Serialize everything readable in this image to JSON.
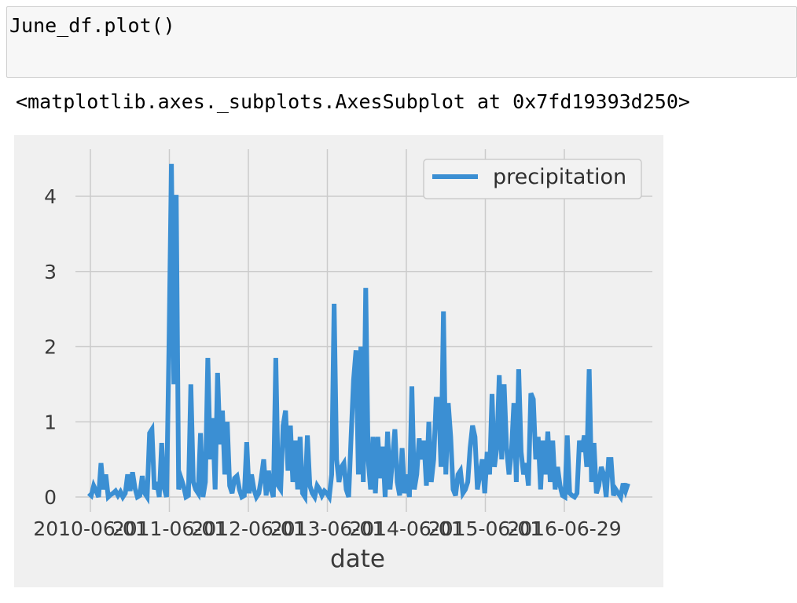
{
  "cell": {
    "code": "June_df.plot()",
    "output": "<matplotlib.axes._subplots.AxesSubplot at 0x7fd19393d250>"
  },
  "colors": {
    "figure_bg": "#f0f0f0",
    "plot_bg": "#f0f0f0",
    "grid": "#cbcbcb",
    "line": "#3b8fd3"
  },
  "chart_data": {
    "type": "line",
    "title": "",
    "xlabel": "date",
    "ylabel": "",
    "ylim": [
      0,
      4.5
    ],
    "yticks": [
      0,
      1,
      2,
      3,
      4
    ],
    "xticks": [
      "2010-06-01",
      "2011-06-01",
      "2012-06-01",
      "2013-06-01",
      "2014-06-01",
      "2015-06-01",
      "2016-06-29"
    ],
    "grid": true,
    "legend": {
      "position": "top-right"
    },
    "series": [
      {
        "name": "precipitation",
        "values": [
          0.05,
          0.02,
          0.15,
          0.08,
          0.0,
          0.45,
          0.1,
          0.3,
          0.0,
          0.03,
          0.05,
          0.08,
          0.02,
          0.07,
          0.0,
          0.05,
          0.3,
          0.08,
          0.33,
          0.12,
          0.0,
          0.02,
          0.28,
          0.05,
          0.0,
          0.85,
          0.9,
          0.1,
          0.2,
          0.0,
          0.72,
          0.12,
          0.0,
          2.0,
          4.43,
          1.5,
          4.02,
          0.1,
          0.25,
          0.15,
          0.0,
          0.02,
          1.5,
          0.2,
          0.1,
          0.05,
          0.85,
          0.0,
          0.2,
          1.85,
          0.5,
          1.05,
          0.1,
          1.65,
          0.7,
          1.15,
          0.3,
          1.0,
          0.15,
          0.05,
          0.25,
          0.28,
          0.1,
          0.0,
          0.02,
          0.73,
          0.05,
          0.3,
          0.1,
          0.0,
          0.05,
          0.25,
          0.5,
          0.02,
          0.35,
          0.1,
          0.0,
          1.85,
          0.15,
          0.1,
          0.95,
          1.15,
          0.35,
          0.95,
          0.2,
          0.75,
          0.1,
          0.8,
          0.05,
          0.0,
          0.82,
          0.15,
          0.05,
          0.0,
          0.15,
          0.1,
          0.02,
          0.08,
          0.05,
          0.0,
          0.3,
          2.57,
          0.5,
          0.2,
          0.4,
          0.45,
          0.1,
          0.0,
          0.8,
          1.55,
          1.95,
          0.3,
          2.0,
          0.2,
          2.78,
          0.5,
          0.1,
          0.8,
          0.05,
          0.8,
          0.25,
          0.67,
          0.0,
          0.87,
          0.1,
          0.5,
          0.9,
          0.2,
          0.02,
          0.65,
          0.05,
          0.3,
          0.0,
          1.47,
          0.1,
          0.3,
          0.78,
          0.5,
          0.75,
          0.15,
          1.0,
          0.2,
          0.5,
          1.3,
          1.3,
          0.4,
          2.47,
          0.3,
          1.25,
          0.8,
          0.1,
          0.02,
          0.3,
          0.35,
          0.05,
          0.1,
          0.2,
          0.65,
          0.95,
          0.8,
          0.1,
          0.3,
          0.5,
          0.05,
          0.6,
          0.3,
          1.37,
          0.4,
          0.65,
          1.62,
          0.5,
          1.5,
          0.65,
          0.3,
          0.6,
          1.25,
          0.2,
          1.7,
          0.6,
          0.3,
          0.45,
          0.15,
          1.38,
          1.3,
          0.5,
          0.8,
          0.1,
          0.75,
          0.3,
          0.87,
          0.2,
          0.75,
          0.1,
          0.4,
          0.15,
          0.02,
          0.0,
          0.82,
          0.05,
          0.02,
          0.0,
          0.05,
          0.75,
          0.6,
          0.82,
          0.4,
          1.7,
          0.2,
          0.72,
          0.05,
          0.15,
          0.4,
          0.3,
          0.0,
          0.5,
          0.5,
          0.02,
          0.1,
          0.05,
          0.0,
          0.18,
          0.08,
          0.18
        ]
      }
    ]
  }
}
